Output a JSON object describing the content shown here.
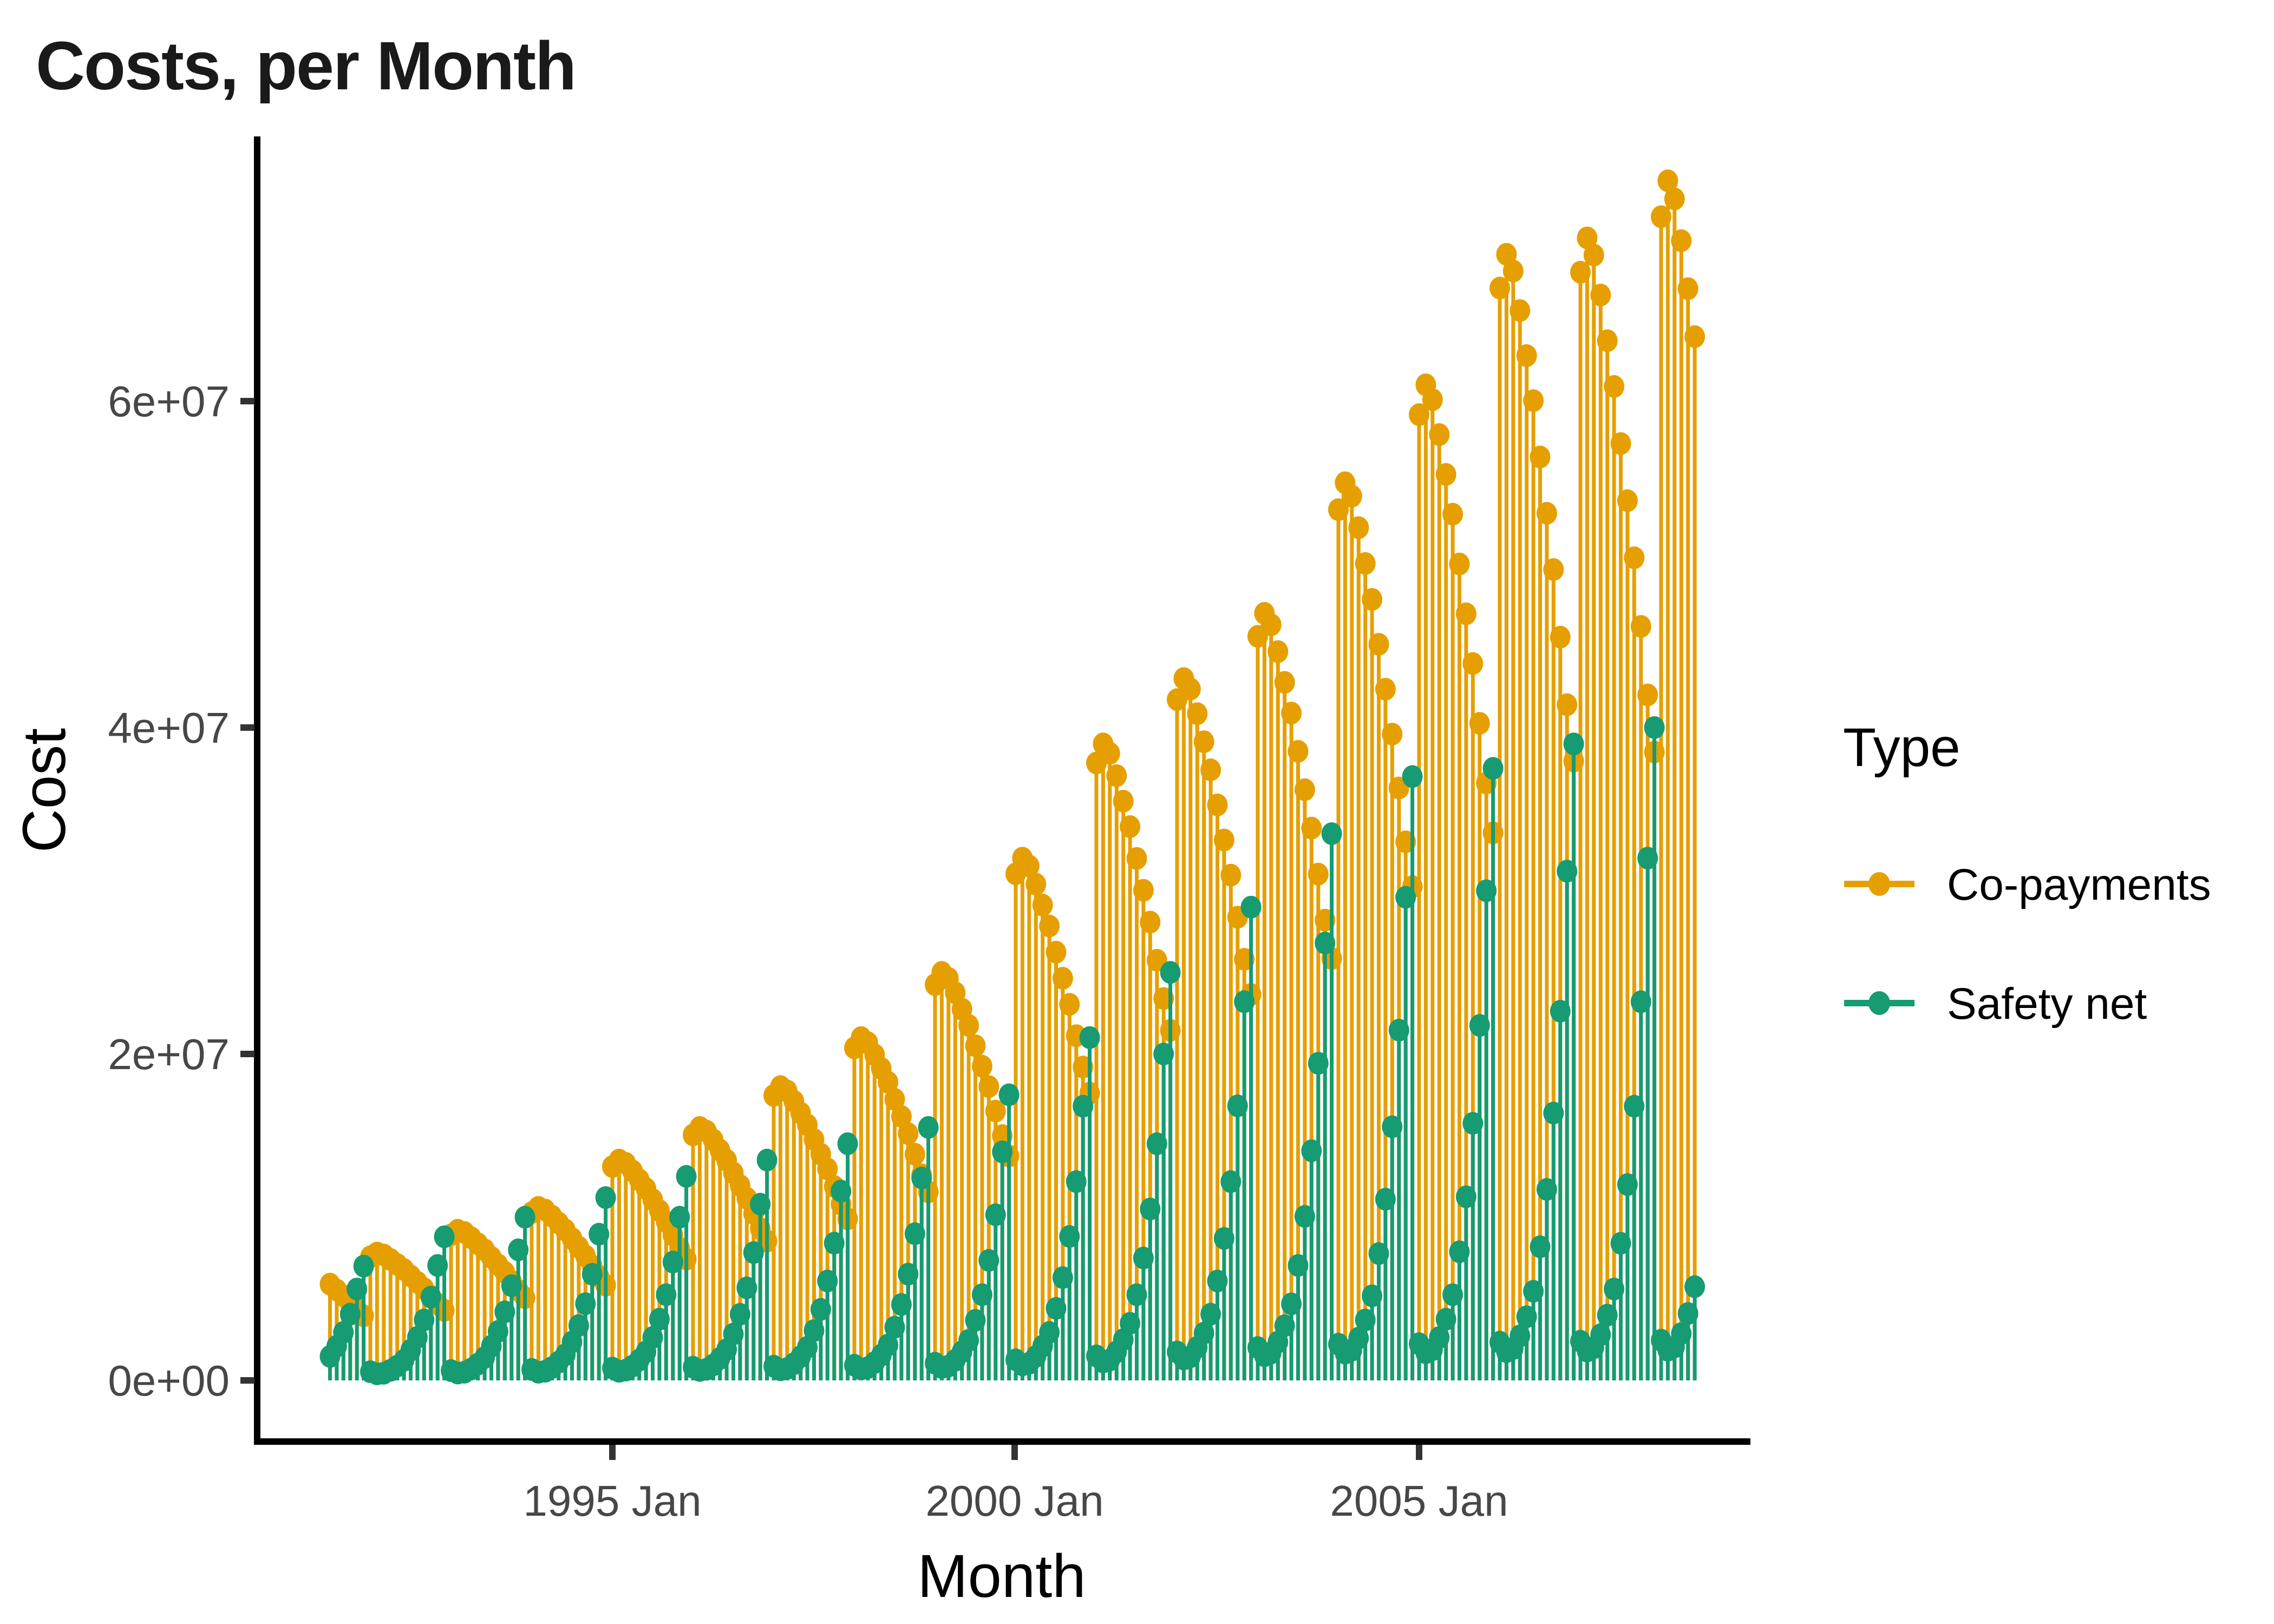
{
  "title": "Costs, per Month",
  "axes": {
    "x": {
      "label": "Month",
      "ticks": [
        "1995 Jan",
        "2000 Jan",
        "2005 Jan"
      ]
    },
    "y": {
      "label": "Cost",
      "ticks": [
        "0e+00",
        "2e+07",
        "4e+07",
        "6e+07"
      ]
    }
  },
  "legend": {
    "title": "Type",
    "entries": [
      {
        "label": "Co-payments",
        "color": "#E69F00"
      },
      {
        "label": "Safety net",
        "color": "#169B72"
      }
    ]
  },
  "colors": {
    "co_payments": "#E69F00",
    "safety_net": "#169B72",
    "tick_text": "#474747",
    "axis": "#000000",
    "background": "#FFFFFF"
  },
  "chart_data": {
    "type": "lollipop-stem",
    "title": "Costs, per Month",
    "xlabel": "Month",
    "ylabel": "Cost",
    "x_start_month": "1991-07",
    "x_end_month": "2008-06",
    "months_per_point": 1,
    "value_unit": 1000000,
    "ylim": [
      0,
      76000000
    ],
    "y_tick_values": [
      0,
      20000000,
      40000000,
      60000000
    ],
    "x_tick_months": [
      "1995-01",
      "2000-01",
      "2005-01"
    ],
    "grid": false,
    "legend_position": "right",
    "seasonality_note": "Co-payments peak Jan-Mar and decline to a December low each calendar year; Safety net is near zero early in the year and peaks Nov-Dec.",
    "series": [
      {
        "name": "Co-payments",
        "color": "#E69F00",
        "values_millions": [
          5.9,
          5.54,
          5.18,
          4.75,
          4.32,
          3.96,
          7.57,
          7.8,
          7.68,
          7.41,
          7.1,
          6.79,
          6.4,
          6.01,
          5.62,
          5.15,
          4.68,
          4.29,
          8.92,
          9.2,
          9.06,
          8.74,
          8.37,
          8,
          7.54,
          7.08,
          6.62,
          6.07,
          5.52,
          5.06,
          10.28,
          10.6,
          10.44,
          10.07,
          9.65,
          9.22,
          8.69,
          8.16,
          7.63,
          7,
          6.36,
          5.83,
          13.1,
          13.5,
          13.3,
          12.83,
          12.29,
          11.75,
          11.07,
          10.4,
          9.72,
          8.91,
          8.1,
          7.43,
          15.04,
          15.5,
          15.27,
          14.73,
          14.11,
          13.49,
          12.71,
          11.94,
          11.16,
          10.23,
          9.3,
          8.53,
          17.46,
          18,
          17.73,
          17.1,
          16.38,
          15.66,
          14.76,
          13.86,
          12.96,
          11.88,
          10.8,
          9.9,
          20.37,
          21,
          20.69,
          19.95,
          19.11,
          18.27,
          17.22,
          16.17,
          15.12,
          13.86,
          12.6,
          11.55,
          24.25,
          25,
          24.63,
          23.75,
          22.75,
          21.75,
          20.5,
          19.25,
          18,
          16.5,
          15,
          13.75,
          31.04,
          32,
          31.52,
          30.4,
          29.12,
          27.84,
          26.24,
          24.64,
          23.04,
          21.12,
          19.2,
          17.6,
          37.83,
          39,
          38.42,
          37.05,
          35.49,
          33.93,
          31.98,
          30.03,
          28.08,
          25.74,
          23.4,
          21.45,
          41.71,
          43,
          42.36,
          40.85,
          39.13,
          37.41,
          35.26,
          33.11,
          30.96,
          28.38,
          25.8,
          23.65,
          45.59,
          47,
          46.3,
          44.65,
          42.77,
          40.89,
          38.54,
          36.19,
          33.84,
          31.02,
          28.2,
          25.85,
          53.35,
          55,
          54.18,
          52.25,
          50.05,
          47.85,
          45.1,
          42.35,
          39.6,
          36.3,
          33,
          30.25,
          59.17,
          61,
          60.09,
          57.95,
          55.51,
          53.07,
          50.02,
          46.97,
          43.92,
          40.26,
          36.6,
          33.55,
          66.93,
          69,
          67.97,
          65.55,
          62.79,
          60.03,
          56.58,
          53.13,
          49.68,
          45.54,
          41.4,
          37.95,
          67.9,
          70,
          68.95,
          66.5,
          63.7,
          60.9,
          57.4,
          53.9,
          50.4,
          46.2,
          42,
          38.5,
          71.3,
          73.5,
          72.39,
          69.83,
          66.89,
          63.95
        ]
      },
      {
        "name": "Safety net",
        "color": "#169B72",
        "values_millions": [
          1.47,
          2.1,
          2.94,
          4.06,
          5.6,
          7,
          0.53,
          0.4,
          0.44,
          0.62,
          0.88,
          1.23,
          1.85,
          2.64,
          3.7,
          5.1,
          7.04,
          8.8,
          0.6,
          0.45,
          0.5,
          0.7,
          1,
          1.4,
          2.1,
          3,
          4.2,
          5.8,
          8,
          10,
          0.67,
          0.5,
          0.56,
          0.78,
          1.12,
          1.57,
          2.35,
          3.36,
          4.7,
          6.5,
          8.96,
          11.2,
          0.75,
          0.56,
          0.63,
          0.88,
          1.25,
          1.75,
          2.63,
          3.75,
          5.25,
          7.25,
          10,
          12.5,
          0.81,
          0.61,
          0.68,
          0.95,
          1.35,
          1.89,
          2.84,
          4.05,
          5.67,
          7.83,
          10.8,
          13.5,
          0.87,
          0.65,
          0.73,
          1.02,
          1.45,
          2.03,
          3.05,
          4.35,
          6.09,
          8.41,
          11.6,
          14.5,
          0.93,
          0.7,
          0.78,
          1.09,
          1.55,
          2.17,
          3.26,
          4.65,
          6.51,
          8.99,
          12.4,
          15.5,
          1.05,
          0.79,
          0.88,
          1.23,
          1.75,
          2.45,
          3.68,
          5.25,
          7.35,
          10.15,
          14,
          17.5,
          1.26,
          0.95,
          1.05,
          1.47,
          2.1,
          2.94,
          4.41,
          6.3,
          8.82,
          12.18,
          16.8,
          21,
          1.5,
          1.13,
          1.25,
          1.75,
          2.5,
          3.5,
          5.25,
          7.5,
          10.5,
          14.5,
          20,
          25,
          1.74,
          1.31,
          1.45,
          2.03,
          2.9,
          4.06,
          6.09,
          8.7,
          12.18,
          16.82,
          23.2,
          29,
          2.01,
          1.51,
          1.68,
          2.35,
          3.35,
          4.69,
          7.04,
          10.05,
          14.07,
          19.43,
          26.8,
          33.5,
          2.22,
          1.67,
          1.85,
          2.59,
          3.7,
          5.18,
          7.77,
          11.1,
          15.54,
          21.46,
          29.6,
          37,
          2.25,
          1.69,
          1.88,
          2.63,
          3.75,
          5.25,
          7.88,
          11.25,
          15.75,
          21.75,
          30,
          37.5,
          2.34,
          1.76,
          1.95,
          2.73,
          3.9,
          5.46,
          8.19,
          11.7,
          16.38,
          22.62,
          31.2,
          39,
          2.4,
          1.8,
          2,
          2.8,
          4,
          5.6,
          8.4,
          12,
          16.8,
          23.2,
          32,
          40,
          2.46,
          1.85,
          2.05,
          2.87,
          4.1,
          5.74
        ]
      }
    ]
  }
}
